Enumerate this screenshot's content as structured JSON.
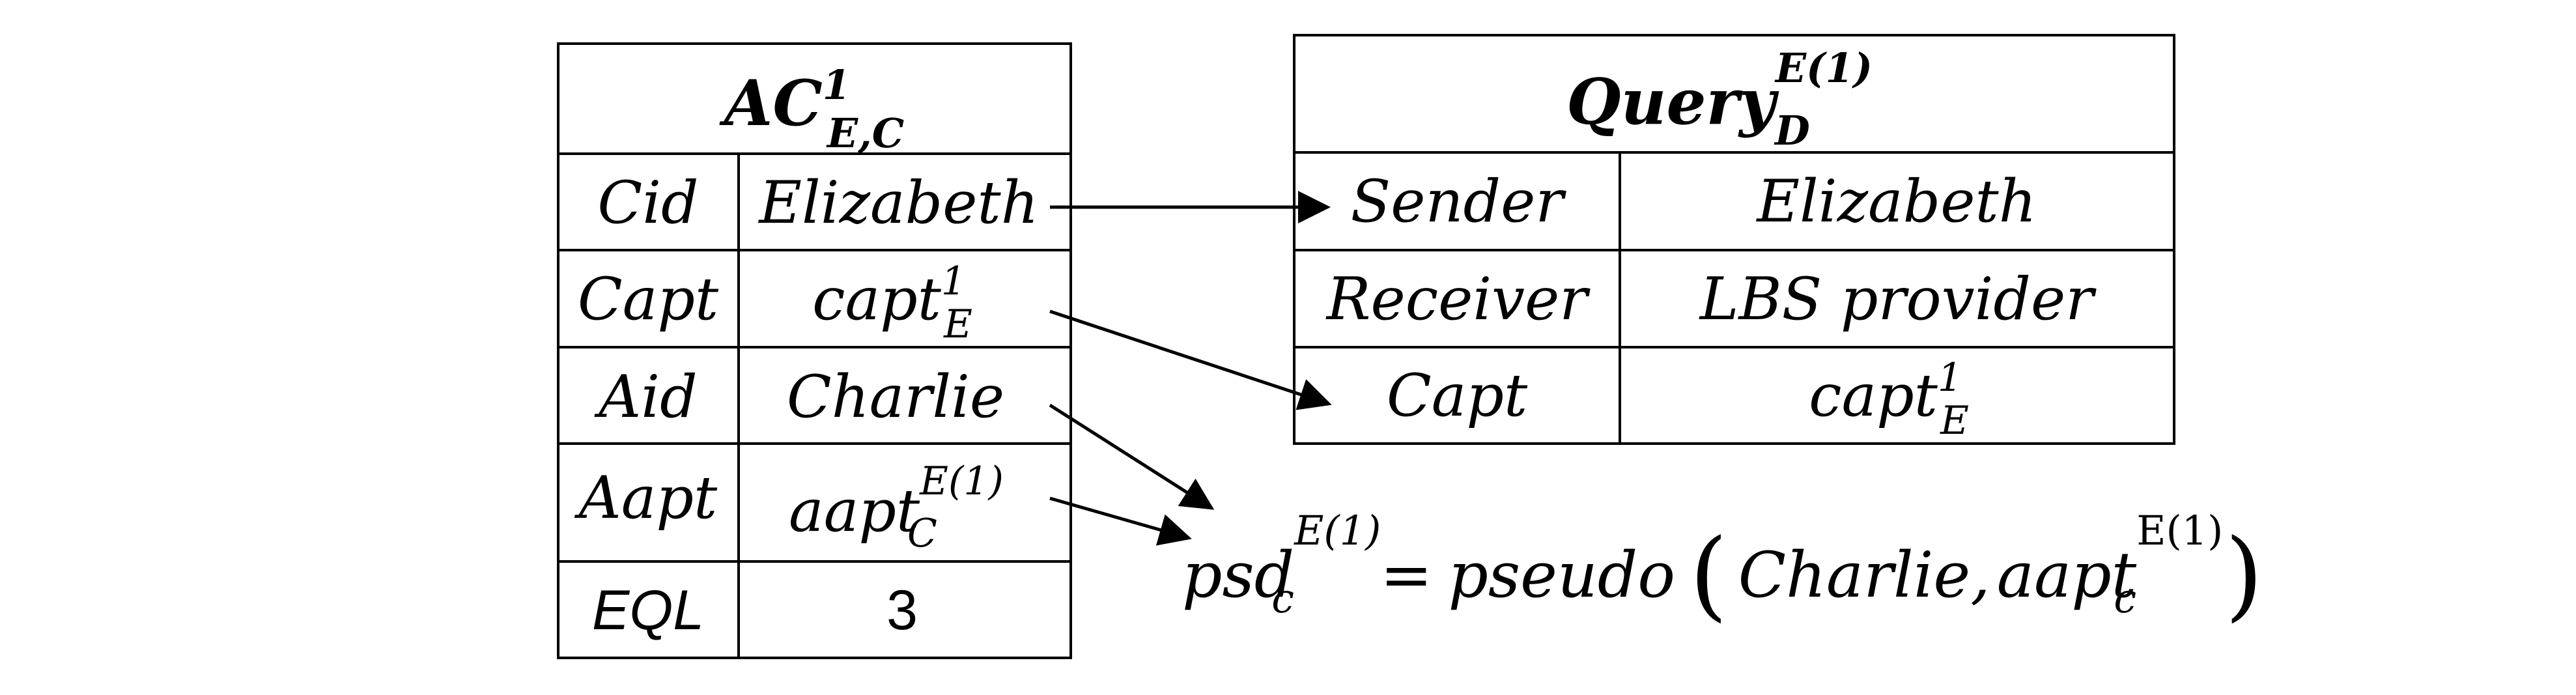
{
  "left_table": {
    "title_base": "AC",
    "title_sup": "1",
    "title_sub": "E,C",
    "rows": [
      {
        "key": "Cid",
        "value": "Elizabeth"
      },
      {
        "key": "Capt",
        "value_base": "capt",
        "value_sup": "1",
        "value_sub": "E"
      },
      {
        "key": "Aid",
        "value": "Charlie"
      },
      {
        "key": "Aapt",
        "value_base": "aapt",
        "value_sup": "E(1)",
        "value_sub": "C"
      },
      {
        "key": "EQL",
        "value": "3"
      }
    ]
  },
  "right_table": {
    "title_base": "Query",
    "title_sup": "E(1)",
    "title_sub": "D",
    "rows": [
      {
        "key": "Sender",
        "value": "Elizabeth"
      },
      {
        "key": "Receiver",
        "value": "LBS provider"
      },
      {
        "key": "Capt",
        "value_base": "capt",
        "value_sup": "1",
        "value_sub": "E"
      }
    ]
  },
  "formula": {
    "lhs_base": "psd",
    "lhs_sup": "E(1)",
    "lhs_sub": "c",
    "equals": "=",
    "func": "pseudo",
    "open_paren": "(",
    "arg1": "Charlie,",
    "arg2_base": "aapt",
    "arg2_sup": "E(1)",
    "arg2_sub": "c",
    "close_paren": ")"
  }
}
